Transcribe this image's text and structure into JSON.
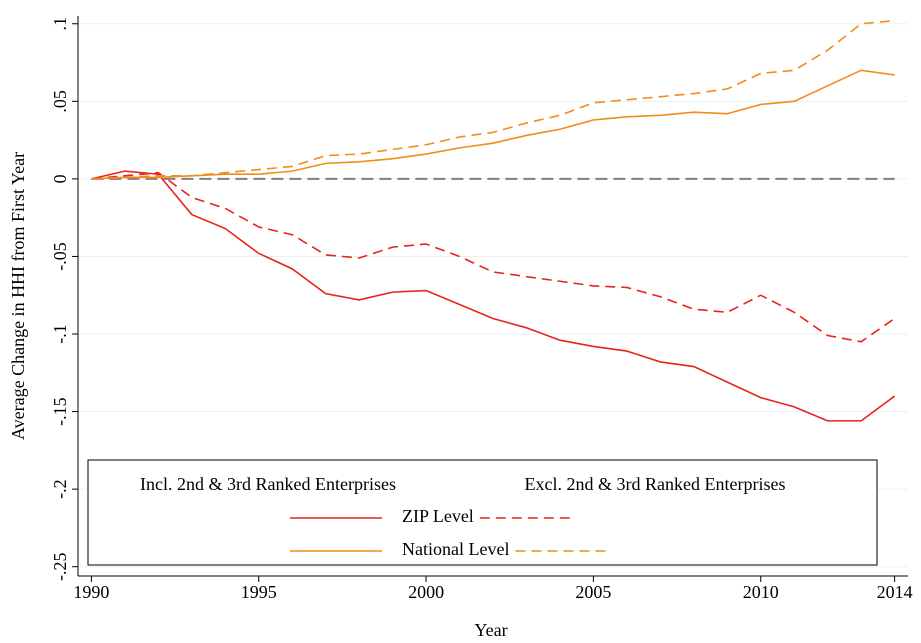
{
  "chart_data": {
    "type": "line",
    "x_label": "Year",
    "y_label": "Average Change in HHI from First Year",
    "x": [
      1990,
      1991,
      1992,
      1993,
      1994,
      1995,
      1996,
      1997,
      1998,
      1999,
      2000,
      2001,
      2002,
      2003,
      2004,
      2005,
      2006,
      2007,
      2008,
      2009,
      2010,
      2011,
      2012,
      2013,
      2014
    ],
    "xlim": [
      1989.6,
      2014.4
    ],
    "xticks": [
      1990,
      1995,
      2000,
      2005,
      2010,
      2014
    ],
    "ylim": [
      -0.256,
      0.105
    ],
    "yticks": [
      {
        "value": -0.25,
        "label": "-.25"
      },
      {
        "value": -0.2,
        "label": "-.2"
      },
      {
        "value": -0.15,
        "label": "-.15"
      },
      {
        "value": -0.1,
        "label": "-.1"
      },
      {
        "value": -0.05,
        "label": "-.05"
      },
      0,
      {
        "value": 0.05,
        "label": ".05"
      },
      {
        "value": 0.1,
        "label": ".1"
      }
    ],
    "grid": true,
    "reference_line": {
      "value": 0,
      "color": "#808080"
    },
    "legend": {
      "columns": [
        "Incl. 2nd & 3rd Ranked Enterprises",
        "Excl. 2nd & 3rd Ranked Enterprises"
      ],
      "rows": [
        "ZIP Level",
        "National Level"
      ]
    },
    "series": [
      {
        "row": 0,
        "column": 0,
        "color": "#e8231e",
        "dashed": false,
        "values": [
          0,
          0.005,
          0.003,
          -0.023,
          -0.032,
          -0.048,
          -0.058,
          -0.074,
          -0.078,
          -0.073,
          -0.072,
          -0.081,
          -0.09,
          -0.096,
          -0.104,
          -0.108,
          -0.111,
          -0.118,
          -0.121,
          -0.131,
          -0.141,
          -0.147,
          -0.156,
          -0.156,
          -0.14
        ]
      },
      {
        "row": 0,
        "column": 1,
        "color": "#e8231e",
        "dashed": true,
        "values": [
          0,
          0.002,
          0.004,
          -0.012,
          -0.019,
          -0.031,
          -0.036,
          -0.049,
          -0.051,
          -0.044,
          -0.042,
          -0.05,
          -0.06,
          -0.063,
          -0.066,
          -0.069,
          -0.07,
          -0.076,
          -0.084,
          -0.086,
          -0.075,
          -0.086,
          -0.101,
          -0.105,
          -0.09
        ]
      },
      {
        "row": 1,
        "column": 0,
        "color": "#f28c1c",
        "dashed": false,
        "values": [
          0,
          0.001,
          0.001,
          0.002,
          0.003,
          0.003,
          0.005,
          0.01,
          0.011,
          0.013,
          0.016,
          0.02,
          0.023,
          0.028,
          0.032,
          0.038,
          0.04,
          0.041,
          0.043,
          0.042,
          0.048,
          0.05,
          0.06,
          0.07,
          0.067
        ]
      },
      {
        "row": 1,
        "column": 1,
        "color": "#f28c1c",
        "dashed": true,
        "values": [
          0,
          0.001,
          0.002,
          0.002,
          0.004,
          0.006,
          0.008,
          0.015,
          0.016,
          0.019,
          0.022,
          0.027,
          0.03,
          0.036,
          0.041,
          0.049,
          0.051,
          0.053,
          0.055,
          0.058,
          0.068,
          0.07,
          0.083,
          0.1,
          0.102
        ]
      }
    ]
  }
}
